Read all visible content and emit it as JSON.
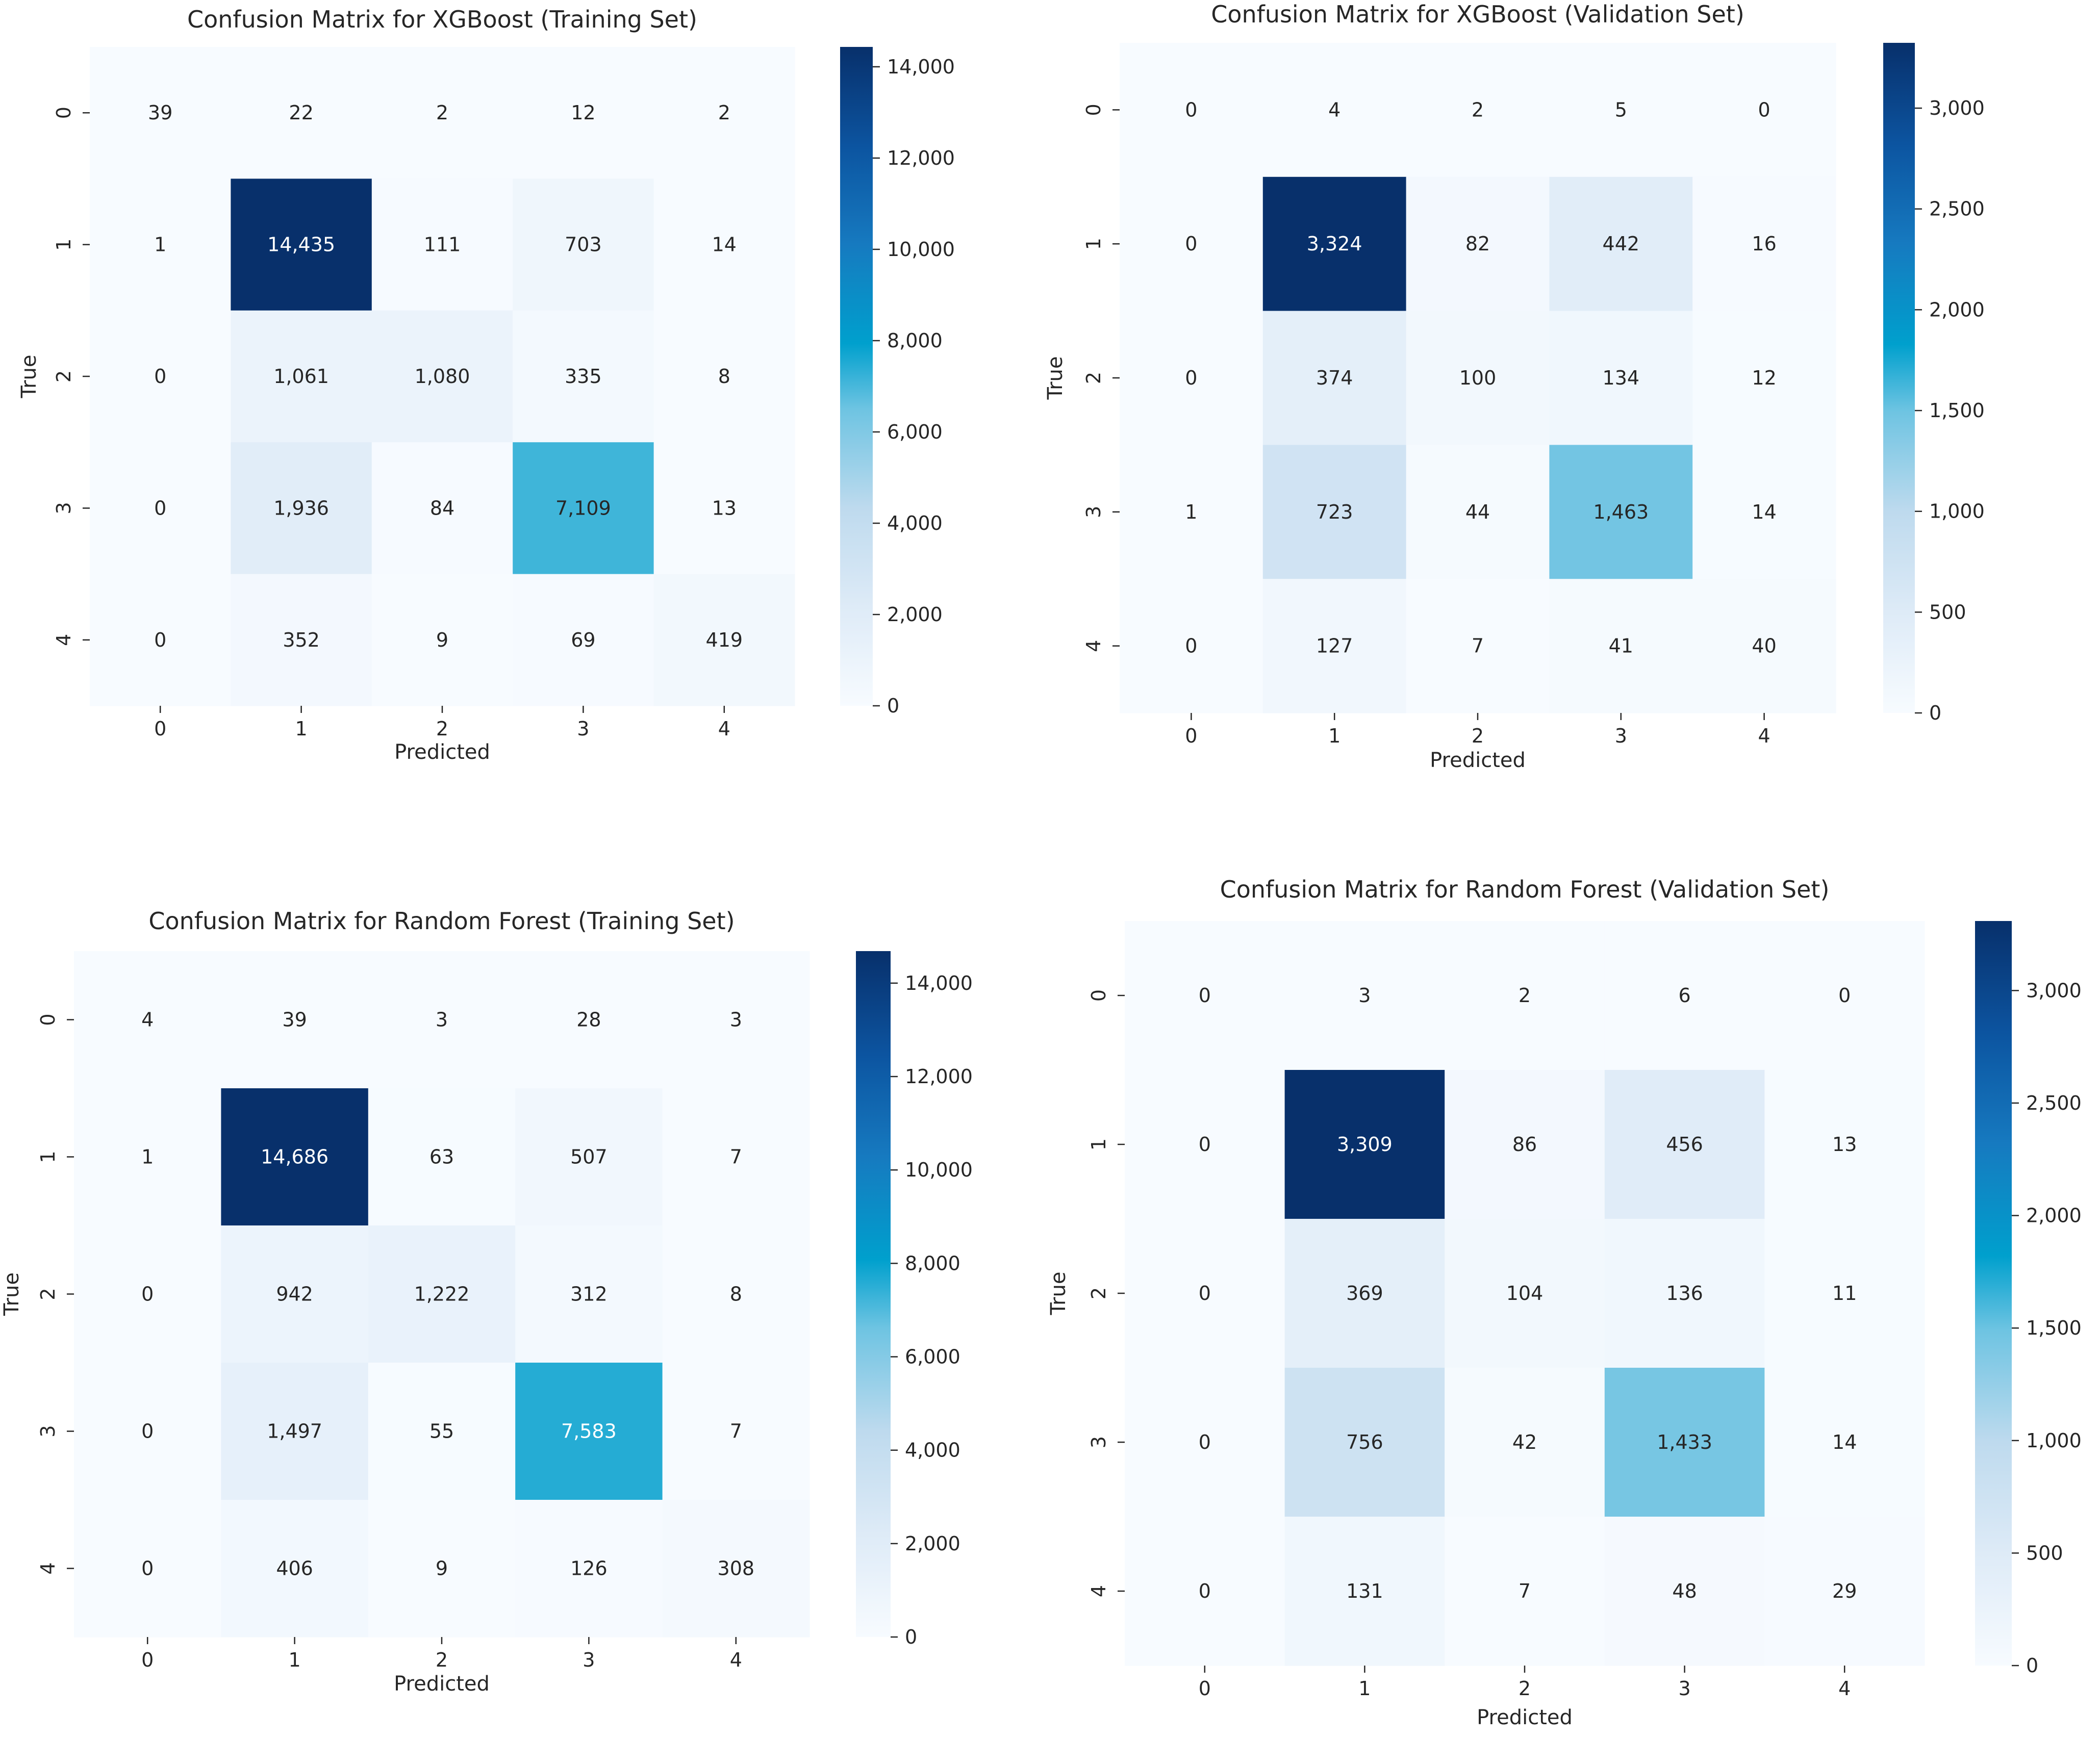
{
  "chart_data": [
    {
      "type": "heatmap",
      "title": "Confusion Matrix for XGBoost (Training Set)",
      "xlabel": "Predicted",
      "ylabel": "True",
      "x_categories": [
        "0",
        "1",
        "2",
        "3",
        "4"
      ],
      "y_categories": [
        "0",
        "1",
        "2",
        "3",
        "4"
      ],
      "values": [
        [
          39,
          22,
          2,
          12,
          2
        ],
        [
          1,
          14435,
          111,
          703,
          14
        ],
        [
          0,
          1061,
          1080,
          335,
          8
        ],
        [
          0,
          1936,
          84,
          7109,
          13
        ],
        [
          0,
          352,
          9,
          69,
          419
        ]
      ],
      "colormap": "Blues",
      "colorbar_range": [
        0,
        14435
      ],
      "colorbar_ticks": [
        0,
        2000,
        4000,
        6000,
        8000,
        10000,
        12000,
        14000
      ],
      "colorbar_tick_labels": [
        "0",
        "2,000",
        "4,000",
        "6,000",
        "8,000",
        "10,000",
        "12,000",
        "14,000"
      ]
    },
    {
      "type": "heatmap",
      "title": "Confusion Matrix for XGBoost (Validation Set)",
      "xlabel": "Predicted",
      "ylabel": "True",
      "x_categories": [
        "0",
        "1",
        "2",
        "3",
        "4"
      ],
      "y_categories": [
        "0",
        "1",
        "2",
        "3",
        "4"
      ],
      "values": [
        [
          0,
          4,
          2,
          5,
          0
        ],
        [
          0,
          3324,
          82,
          442,
          16
        ],
        [
          0,
          374,
          100,
          134,
          12
        ],
        [
          1,
          723,
          44,
          1463,
          14
        ],
        [
          0,
          127,
          7,
          41,
          40
        ]
      ],
      "colormap": "Blues",
      "colorbar_range": [
        0,
        3324
      ],
      "colorbar_ticks": [
        0,
        500,
        1000,
        1500,
        2000,
        2500,
        3000
      ],
      "colorbar_tick_labels": [
        "0",
        "500",
        "1,000",
        "1,500",
        "2,000",
        "2,500",
        "3,000"
      ]
    },
    {
      "type": "heatmap",
      "title": "Confusion Matrix for Random Forest (Training Set)",
      "xlabel": "Predicted",
      "ylabel": "True",
      "x_categories": [
        "0",
        "1",
        "2",
        "3",
        "4"
      ],
      "y_categories": [
        "0",
        "1",
        "2",
        "3",
        "4"
      ],
      "values": [
        [
          4,
          39,
          3,
          28,
          3
        ],
        [
          1,
          14686,
          63,
          507,
          7
        ],
        [
          0,
          942,
          1222,
          312,
          8
        ],
        [
          0,
          1497,
          55,
          7583,
          7
        ],
        [
          0,
          406,
          9,
          126,
          308
        ]
      ],
      "colormap": "Blues",
      "colorbar_range": [
        0,
        14686
      ],
      "colorbar_ticks": [
        0,
        2000,
        4000,
        6000,
        8000,
        10000,
        12000,
        14000
      ],
      "colorbar_tick_labels": [
        "0",
        "2,000",
        "4,000",
        "6,000",
        "8,000",
        "10,000",
        "12,000",
        "14,000"
      ]
    },
    {
      "type": "heatmap",
      "title": "Confusion Matrix for Random Forest (Validation Set)",
      "xlabel": "Predicted",
      "ylabel": "True",
      "x_categories": [
        "0",
        "1",
        "2",
        "3",
        "4"
      ],
      "y_categories": [
        "0",
        "1",
        "2",
        "3",
        "4"
      ],
      "values": [
        [
          0,
          3,
          2,
          6,
          0
        ],
        [
          0,
          3309,
          86,
          456,
          13
        ],
        [
          0,
          369,
          104,
          136,
          11
        ],
        [
          0,
          756,
          42,
          1433,
          14
        ],
        [
          0,
          131,
          7,
          48,
          29
        ]
      ],
      "colormap": "Blues",
      "colorbar_range": [
        0,
        3309
      ],
      "colorbar_ticks": [
        0,
        500,
        1000,
        1500,
        2000,
        2500,
        3000
      ],
      "colorbar_tick_labels": [
        "0",
        "500",
        "1,000",
        "1,500",
        "2,000",
        "2,500",
        "3,000"
      ]
    }
  ]
}
